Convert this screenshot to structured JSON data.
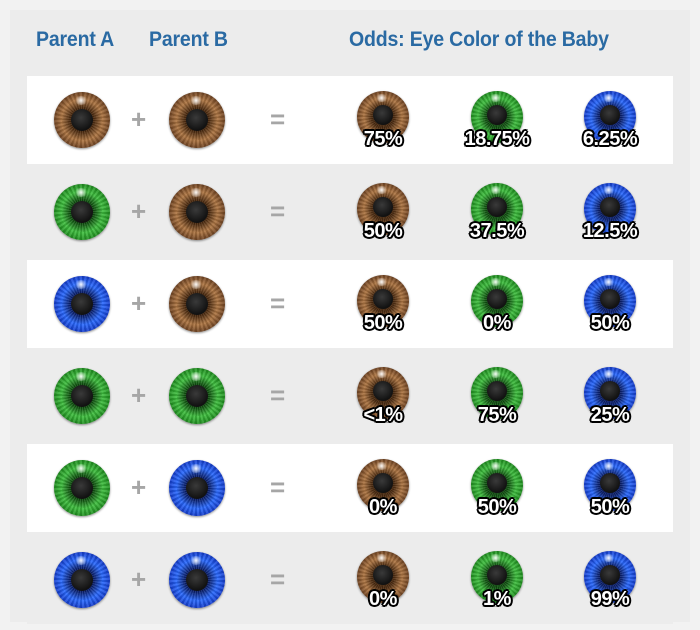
{
  "headers": {
    "parent_a": "Parent A",
    "parent_b": "Parent B",
    "odds": "Odds: Eye Color of the Baby"
  },
  "symbols": {
    "plus": "+",
    "equals": "="
  },
  "colors": {
    "header_text": "#2a6aa3",
    "brown_eye": "#9a6434",
    "green_eye": "#2aa82a",
    "blue_eye": "#1f55e0"
  },
  "rows": [
    {
      "parent_a": "brown",
      "parent_b": "brown",
      "odds": {
        "brown": "75%",
        "green": "18.75%",
        "blue": "6.25%"
      }
    },
    {
      "parent_a": "green",
      "parent_b": "brown",
      "odds": {
        "brown": "50%",
        "green": "37.5%",
        "blue": "12.5%"
      }
    },
    {
      "parent_a": "blue",
      "parent_b": "brown",
      "odds": {
        "brown": "50%",
        "green": "0%",
        "blue": "50%"
      }
    },
    {
      "parent_a": "green",
      "parent_b": "green",
      "odds": {
        "brown": "<1%",
        "green": "75%",
        "blue": "25%"
      }
    },
    {
      "parent_a": "green",
      "parent_b": "blue",
      "odds": {
        "brown": "0%",
        "green": "50%",
        "blue": "50%"
      }
    },
    {
      "parent_a": "blue",
      "parent_b": "blue",
      "odds": {
        "brown": "0%",
        "green": "1%",
        "blue": "99%"
      }
    }
  ]
}
